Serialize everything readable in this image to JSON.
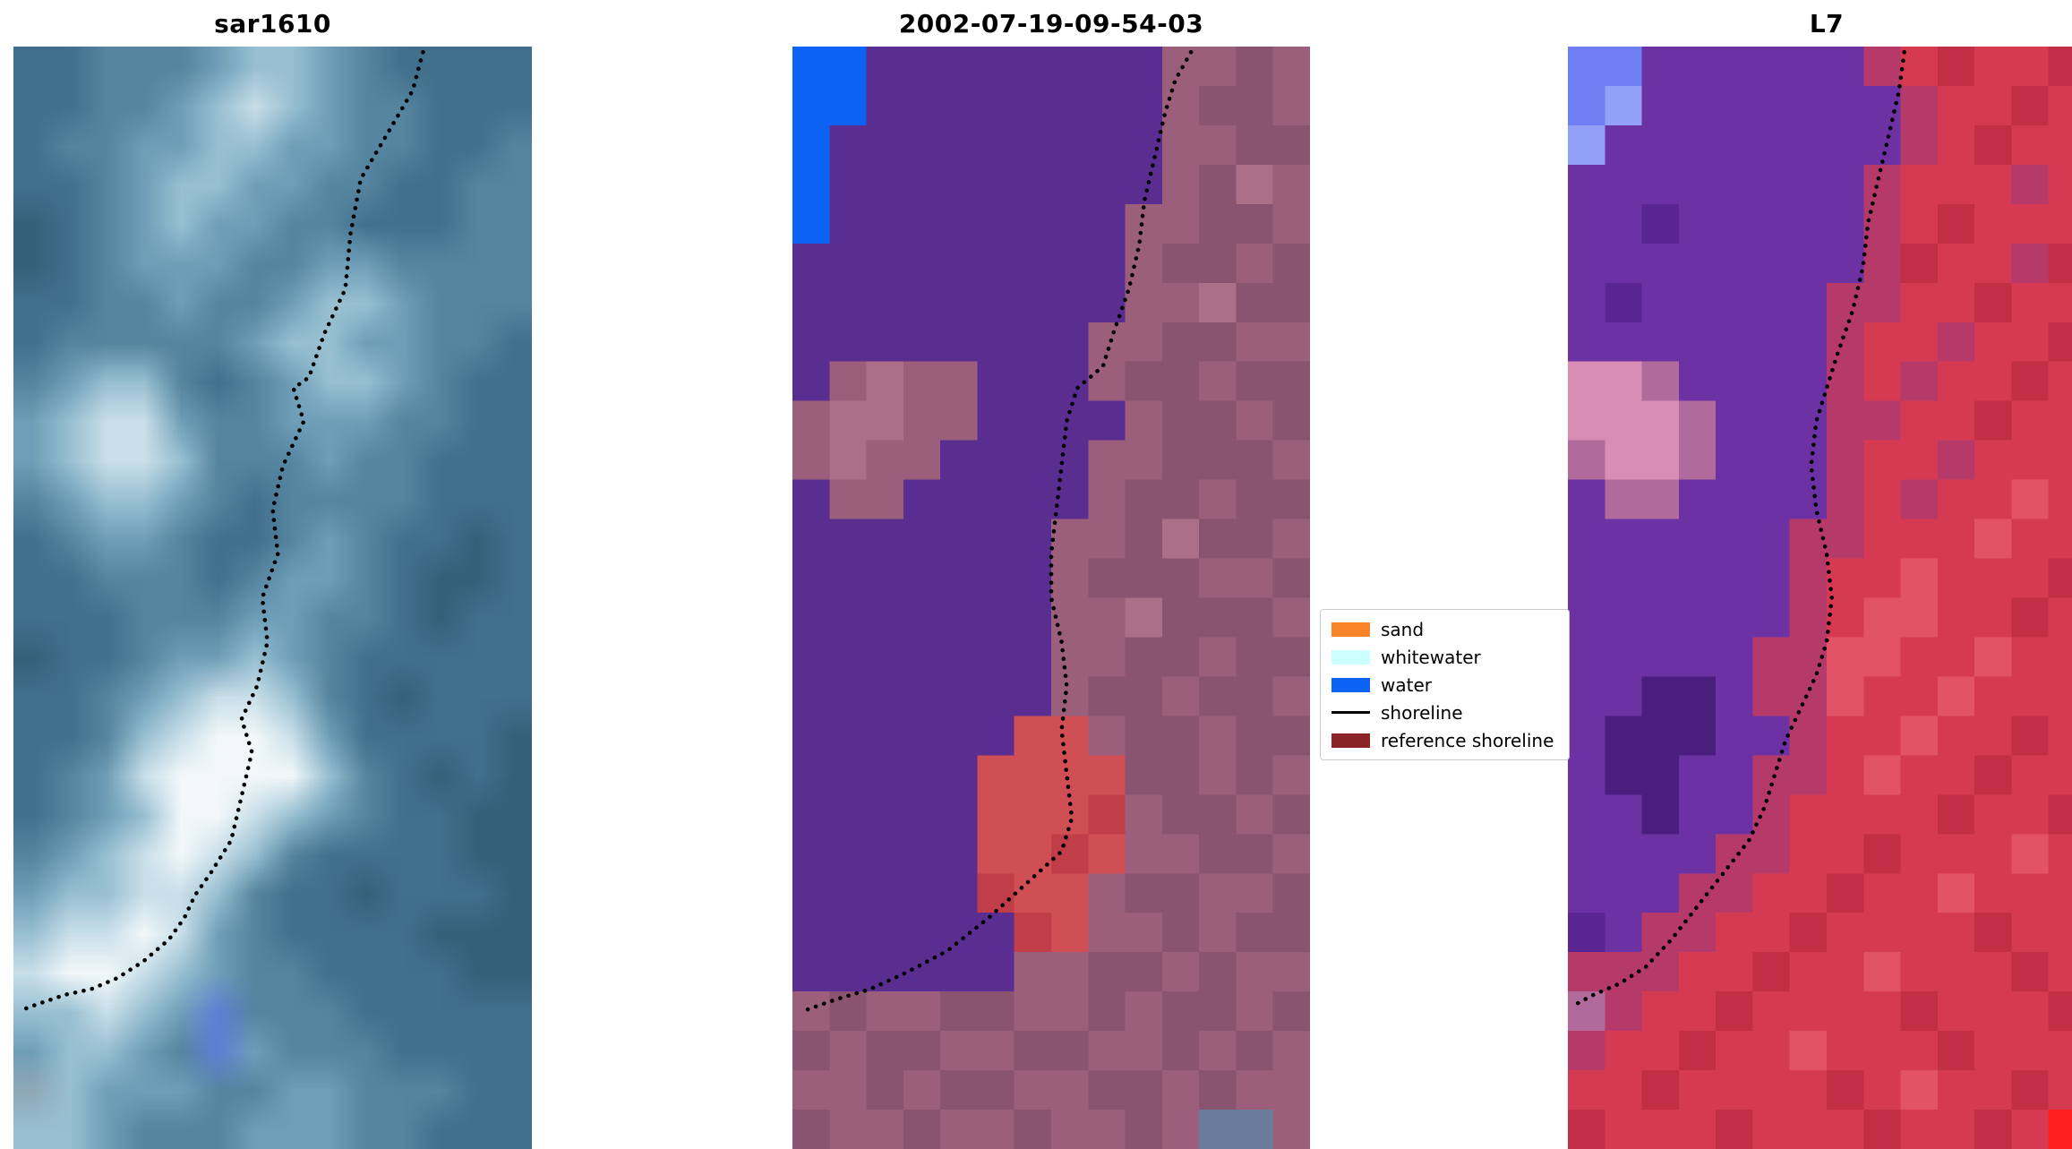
{
  "shoreline_color": "#000000",
  "panels": [
    {
      "title": "sar1610",
      "palette": {
        "a": "#35607a",
        "b": "#41708d",
        "c": "#55859f",
        "d": "#6f9fb8",
        "e": "#98c0d2",
        "f": "#c9dfe9",
        "g": "#f2f8fa",
        "h": "#8fa9b6",
        "j": "#5d7fd6"
      },
      "grid": [
        "bbcccdeedcbbbb",
        "bbccdefedccbbb",
        "bccddeeddccbbc",
        "bbcdeeddccbbcc",
        "abcdeddccbbbcc",
        "abcdddccddcccc",
        "bbccdccdeedccc",
        "bcccccdeeddccb",
        "cdeecbcdeedcbb",
        "deffdccdddccbb",
        "deffecccdccbbb",
        "cdeedcbccccbbb",
        "bcddcbbcdcbbab",
        "bbcccbcddcbaab",
        "bbbcccddccbabb",
        "abbcddedcbbbbb",
        "bbcdeffecbabbb",
        "bbcefggfdbbbba",
        "bcdfggggecbaba",
        "bcdeggfedcbbaa",
        "cdefgfecbbbbaa",
        "deeffecbbabbba",
        "effgfdcbbbbaaa",
        "fggfedccbbbbaa",
        "eefedjcccbbbbb",
        "deedcjdcccbbbb",
        "hedddccddcccbb",
        "eedcccdddccbbb"
      ],
      "shoreline": [
        [
          0.79,
          0.005
        ],
        [
          0.77,
          0.04
        ],
        [
          0.72,
          0.08
        ],
        [
          0.67,
          0.12
        ],
        [
          0.65,
          0.17
        ],
        [
          0.64,
          0.22
        ],
        [
          0.6,
          0.26
        ],
        [
          0.57,
          0.3
        ],
        [
          0.54,
          0.31
        ],
        [
          0.56,
          0.34
        ],
        [
          0.52,
          0.38
        ],
        [
          0.5,
          0.42
        ],
        [
          0.51,
          0.46
        ],
        [
          0.48,
          0.5
        ],
        [
          0.49,
          0.54
        ],
        [
          0.47,
          0.58
        ],
        [
          0.44,
          0.61
        ],
        [
          0.46,
          0.64
        ],
        [
          0.44,
          0.68
        ],
        [
          0.42,
          0.72
        ],
        [
          0.38,
          0.75
        ],
        [
          0.35,
          0.77
        ],
        [
          0.33,
          0.79
        ],
        [
          0.3,
          0.81
        ],
        [
          0.25,
          0.83
        ],
        [
          0.2,
          0.845
        ],
        [
          0.15,
          0.855
        ],
        [
          0.1,
          0.86
        ],
        [
          0.05,
          0.868
        ],
        [
          0.01,
          0.875
        ]
      ]
    },
    {
      "title": "2002-07-19-09-54-03",
      "palette": {
        "p": "#5a2d91",
        "m": "#9b5f7c",
        "n": "#8a5370",
        "o": "#ab6f8a",
        "r": "#d04f55",
        "s": "#c13e48",
        "B": "#0c62f2",
        "t": "#6b7b9b"
      },
      "grid": [
        "BBppppppppmmnm",
        "BBppppppppmnnm",
        "Bpppppppppmmnn",
        "Bpppppppppmnom",
        "Bppppppppmmnnm",
        "pppppppppmnnmn",
        "pppppppppmmonn",
        "ppppppppmmnnmm",
        "pmommpppmnnmnn",
        "moommppppmnnmn",
        "mommppppmmnnnm",
        "pmmpppppmnnmnn",
        "pppppppmmnonnm",
        "pppppppmnnnmmn",
        "pppppppmmonnnm",
        "pppppppmmnnmnn",
        "pppppppmnnmnnm",
        "pppppprrmnnmnn",
        "ppppprrrrnnmnm",
        "ppppprrrsmnnmn",
        "ppppprrsrmmnnm",
        "pppppsrrmnnmmn",
        "ppppppsrmmnmnn",
        "ppppppmmnnmnmm",
        "mnmmnnmmnmnnmn",
        "nmnnmmnnmmnmnm",
        "mmnmnnmmnnmnmm",
        "nmmnmmnmmnmttm"
      ],
      "shoreline": [
        [
          0.77,
          0.005
        ],
        [
          0.74,
          0.03
        ],
        [
          0.72,
          0.06
        ],
        [
          0.7,
          0.1
        ],
        [
          0.68,
          0.14
        ],
        [
          0.67,
          0.18
        ],
        [
          0.65,
          0.22
        ],
        [
          0.62,
          0.26
        ],
        [
          0.6,
          0.29
        ],
        [
          0.55,
          0.31
        ],
        [
          0.53,
          0.34
        ],
        [
          0.52,
          0.38
        ],
        [
          0.51,
          0.42
        ],
        [
          0.5,
          0.46
        ],
        [
          0.5,
          0.5
        ],
        [
          0.52,
          0.54
        ],
        [
          0.53,
          0.58
        ],
        [
          0.52,
          0.62
        ],
        [
          0.53,
          0.66
        ],
        [
          0.54,
          0.7
        ],
        [
          0.52,
          0.73
        ],
        [
          0.45,
          0.76
        ],
        [
          0.38,
          0.79
        ],
        [
          0.3,
          0.82
        ],
        [
          0.22,
          0.84
        ],
        [
          0.15,
          0.855
        ],
        [
          0.08,
          0.865
        ],
        [
          0.02,
          0.875
        ]
      ]
    },
    {
      "title": "L7",
      "palette": {
        "P": "#6c31a2",
        "Q": "#5a2590",
        "R": "#d63a52",
        "S": "#c22e46",
        "T": "#e25368",
        "K": "#b53a6a",
        "L": "#d78db4",
        "M": "#b06a9c",
        "U": "#6f7ef2",
        "V": "#93a0f7",
        "W": "#491e7d",
        "X": "#ff1f1f"
      },
      "grid": [
        "UUPPPPPPKRSRRS",
        "UVPPPPPPPKRRSR",
        "VPPPPPPPPKRSRR",
        "PPPPPPPPKRRRKR",
        "PPQPPPPPKRSRRR",
        "PPPPPPPPKSRRKS",
        "PQPPPPPKKRRSRR",
        "PPPPPPPKRRKRRS",
        "LLMPPPPKRKRRSR",
        "LLLMPPPKKRRSRR",
        "MLLMPPPKRRKRRR",
        "PMMPPPPKRKRRTR",
        "PPPPPPKKRRRTRR",
        "PPPPPPKRRTRRRS",
        "PPPPPPKRTTRRSR",
        "PPPPPKKTTRRTRR",
        "PPWWPKKTRRTRRR",
        "PWWWPPKRRTRRSR",
        "PWWPPKKRTRRSRR",
        "PPWPPKRRRRSRRS",
        "PPPPKKRRSRRRTR",
        "PPPKKRRSRRTRRR",
        "QPKKRRSRRRRSRR",
        "KKKRRSRRTRRRSR",
        "MKRRSRRRRSRRRS",
        "KRRSRRTRRRSRRR",
        "RRSRRRRSRTRRSR",
        "SRRRSRRRSRRSRX"
      ],
      "shoreline": [
        [
          0.65,
          0.005
        ],
        [
          0.64,
          0.04
        ],
        [
          0.62,
          0.08
        ],
        [
          0.6,
          0.12
        ],
        [
          0.58,
          0.16
        ],
        [
          0.57,
          0.2
        ],
        [
          0.55,
          0.24
        ],
        [
          0.52,
          0.28
        ],
        [
          0.5,
          0.31
        ],
        [
          0.48,
          0.34
        ],
        [
          0.47,
          0.38
        ],
        [
          0.48,
          0.42
        ],
        [
          0.5,
          0.46
        ],
        [
          0.51,
          0.5
        ],
        [
          0.5,
          0.54
        ],
        [
          0.48,
          0.57
        ],
        [
          0.45,
          0.6
        ],
        [
          0.42,
          0.63
        ],
        [
          0.4,
          0.66
        ],
        [
          0.38,
          0.69
        ],
        [
          0.35,
          0.72
        ],
        [
          0.3,
          0.75
        ],
        [
          0.25,
          0.78
        ],
        [
          0.2,
          0.81
        ],
        [
          0.15,
          0.835
        ],
        [
          0.1,
          0.85
        ],
        [
          0.05,
          0.86
        ],
        [
          0.01,
          0.87
        ]
      ]
    }
  ],
  "legend": {
    "items": [
      {
        "label": "sand",
        "type": "patch",
        "color": "#f98328"
      },
      {
        "label": "whitewater",
        "type": "patch",
        "color": "#ccffff"
      },
      {
        "label": "water",
        "type": "patch",
        "color": "#0c62f2"
      },
      {
        "label": "shoreline",
        "type": "line",
        "color": "#000000"
      },
      {
        "label": "reference shoreline",
        "type": "patch",
        "color": "#8b2429"
      }
    ]
  },
  "chart_data": {
    "type": "image",
    "panels": [
      "sar1610",
      "2002-07-19-09-54-03",
      "L7"
    ],
    "description_labels": {
      "left_title": "sar1610",
      "middle_title": "2002-07-19-09-54-03",
      "right_title": "L7"
    },
    "legend_entries": [
      {
        "label": "sand",
        "color": "#f98328",
        "marker": "patch"
      },
      {
        "label": "whitewater",
        "color": "#ccffff",
        "marker": "patch"
      },
      {
        "label": "water",
        "color": "#0c62f2",
        "marker": "patch"
      },
      {
        "label": "shoreline",
        "color": "#000000",
        "marker": "line"
      },
      {
        "label": "reference shoreline",
        "color": "#8b2429",
        "marker": "patch"
      }
    ],
    "legend_position": "right of middle panel",
    "grid": false
  }
}
